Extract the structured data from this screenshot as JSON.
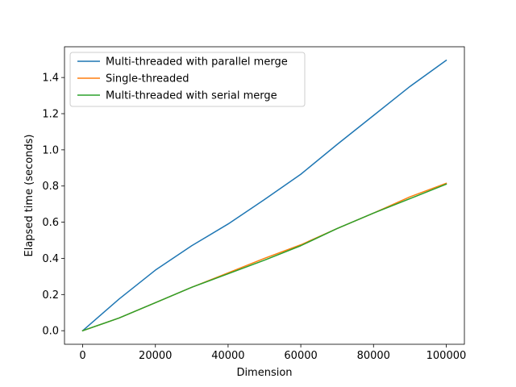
{
  "chart_data": {
    "type": "line",
    "title": "",
    "xlabel": "Dimension",
    "ylabel": "Elapsed time (seconds)",
    "xlim": [
      -5000,
      105000
    ],
    "ylim": [
      -0.075,
      1.57
    ],
    "xticks": [
      0,
      20000,
      40000,
      60000,
      80000,
      100000
    ],
    "xtick_labels": [
      "0",
      "20000",
      "40000",
      "60000",
      "80000",
      "100000"
    ],
    "yticks": [
      0.0,
      0.2,
      0.4,
      0.6,
      0.8,
      1.0,
      1.2,
      1.4
    ],
    "ytick_labels": [
      "0.0",
      "0.2",
      "0.4",
      "0.6",
      "0.8",
      "1.0",
      "1.2",
      "1.4"
    ],
    "grid": false,
    "legend_position": "top-left",
    "x": [
      0,
      10000,
      20000,
      30000,
      40000,
      50000,
      60000,
      70000,
      80000,
      90000,
      100000
    ],
    "series": [
      {
        "name": "Multi-threaded with parallel merge",
        "color": "#1f77b4",
        "values": [
          0.0,
          0.175,
          0.335,
          0.47,
          0.59,
          0.725,
          0.865,
          1.03,
          1.19,
          1.35,
          1.495
        ]
      },
      {
        "name": "Single-threaded",
        "color": "#ff7f0e",
        "values": [
          0.0,
          0.07,
          0.155,
          0.24,
          0.32,
          0.4,
          0.475,
          0.565,
          0.65,
          0.74,
          0.815
        ]
      },
      {
        "name": "Multi-threaded with serial merge",
        "color": "#2ca02c",
        "values": [
          0.0,
          0.07,
          0.155,
          0.24,
          0.315,
          0.39,
          0.47,
          0.565,
          0.65,
          0.73,
          0.81
        ]
      }
    ]
  }
}
